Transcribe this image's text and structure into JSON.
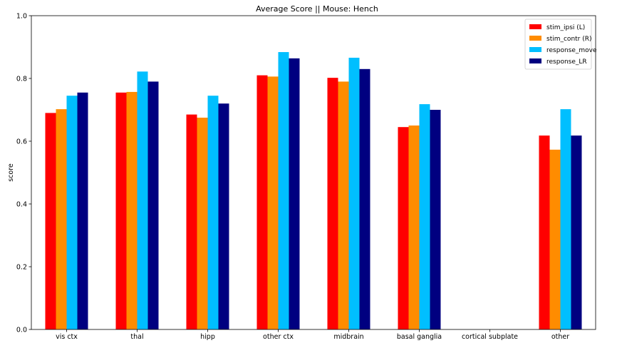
{
  "chart_data": {
    "type": "bar",
    "title": "Average Score || Mouse: Hench",
    "xlabel": "",
    "ylabel": "score",
    "ylim": [
      0,
      1.0
    ],
    "yticks": [
      "0.0",
      "0.2",
      "0.4",
      "0.6",
      "0.8",
      "1.0"
    ],
    "categories": [
      "vis ctx",
      "thal",
      "hipp",
      "other ctx",
      "midbrain",
      "basal ganglia",
      "cortical subplate",
      "other"
    ],
    "series": [
      {
        "name": "stim_ipsi (L)",
        "color": "#ff0000",
        "values": [
          0.69,
          0.755,
          0.685,
          0.81,
          0.802,
          0.645,
          null,
          0.618
        ]
      },
      {
        "name": "stim_contr (R)",
        "color": "#ff8c00",
        "values": [
          0.702,
          0.757,
          0.675,
          0.806,
          0.79,
          0.65,
          null,
          0.573
        ]
      },
      {
        "name": "response_move",
        "color": "#00bfff",
        "values": [
          0.745,
          0.822,
          0.745,
          0.884,
          0.866,
          0.718,
          null,
          0.702
        ]
      },
      {
        "name": "response_LR",
        "color": "#000080",
        "values": [
          0.755,
          0.79,
          0.72,
          0.864,
          0.83,
          0.7,
          null,
          0.618
        ]
      }
    ],
    "legend": {
      "placement": "top-right"
    },
    "grid": false
  }
}
